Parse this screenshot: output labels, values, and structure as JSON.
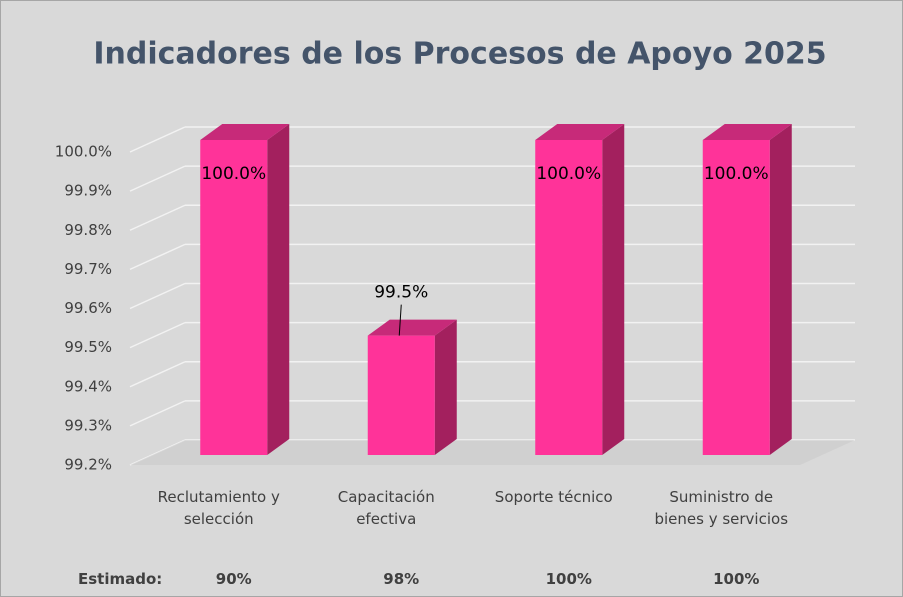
{
  "chart_data": {
    "type": "bar3d",
    "title": "Indicadores de los Procesos de Apoyo 2025",
    "categories": [
      "Reclutamiento y selección",
      "Capacitación efectiva",
      "Soporte técnico",
      "Suministro de bienes y servicios"
    ],
    "values": [
      100.0,
      99.5,
      100.0,
      100.0
    ],
    "value_labels": [
      "100.0%",
      "99.5%",
      "100.0%",
      "100.0%"
    ],
    "color": "#ff3399",
    "ylim": [
      99.2,
      100.0
    ],
    "yticks": [
      {
        "value": 99.2,
        "label": "99.2%"
      },
      {
        "value": 99.3,
        "label": "99.3%"
      },
      {
        "value": 99.4,
        "label": "99.4%"
      },
      {
        "value": 99.5,
        "label": "99.5%"
      },
      {
        "value": 99.6,
        "label": "99.6%"
      },
      {
        "value": 99.7,
        "label": "99.7%"
      },
      {
        "value": 99.8,
        "label": "99.8%"
      },
      {
        "value": 99.9,
        "label": "99.9%"
      },
      {
        "value": 100.0,
        "label": "100.0%"
      }
    ],
    "grid": true
  },
  "footer": {
    "label": "Estimado:",
    "values": [
      "90%",
      "98%",
      "100%",
      "100%"
    ]
  }
}
